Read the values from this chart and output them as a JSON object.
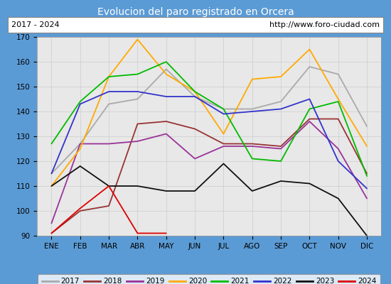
{
  "title": "Evolucion del paro registrado en Orcera",
  "title_color": "#ffffff",
  "title_bg": "#5b9bd5",
  "subtitle_left": "2017 - 2024",
  "subtitle_right": "http://www.foro-ciudad.com",
  "months": [
    "ENE",
    "FEB",
    "MAR",
    "ABR",
    "MAY",
    "JUN",
    "JUL",
    "AGO",
    "SEP",
    "OCT",
    "NOV",
    "DIC"
  ],
  "ylim": [
    90,
    170
  ],
  "yticks": [
    90,
    100,
    110,
    120,
    130,
    140,
    150,
    160,
    170
  ],
  "series": {
    "2017": {
      "color": "#aaaaaa",
      "data": [
        115,
        127,
        143,
        145,
        157,
        146,
        141,
        141,
        144,
        158,
        155,
        134
      ]
    },
    "2018": {
      "color": "#993333",
      "data": [
        91,
        100,
        102,
        135,
        136,
        133,
        127,
        127,
        126,
        137,
        137,
        115
      ]
    },
    "2019": {
      "color": "#993399",
      "data": [
        95,
        127,
        127,
        128,
        131,
        121,
        126,
        126,
        125,
        136,
        125,
        105
      ]
    },
    "2020": {
      "color": "#ffaa00",
      "data": [
        110,
        125,
        154,
        169,
        155,
        148,
        131,
        153,
        154,
        165,
        145,
        126
      ]
    },
    "2021": {
      "color": "#00bb00",
      "data": [
        127,
        144,
        154,
        155,
        160,
        148,
        141,
        121,
        120,
        141,
        144,
        114
      ]
    },
    "2022": {
      "color": "#3333cc",
      "data": [
        115,
        143,
        148,
        148,
        146,
        146,
        139,
        140,
        141,
        145,
        120,
        109
      ]
    },
    "2023": {
      "color": "#111111",
      "data": [
        110,
        118,
        110,
        110,
        108,
        108,
        119,
        108,
        112,
        111,
        105,
        90
      ]
    },
    "2024": {
      "color": "#dd0000",
      "data": [
        91,
        101,
        110,
        91,
        91,
        null,
        null,
        null,
        null,
        null,
        null,
        null
      ]
    }
  }
}
